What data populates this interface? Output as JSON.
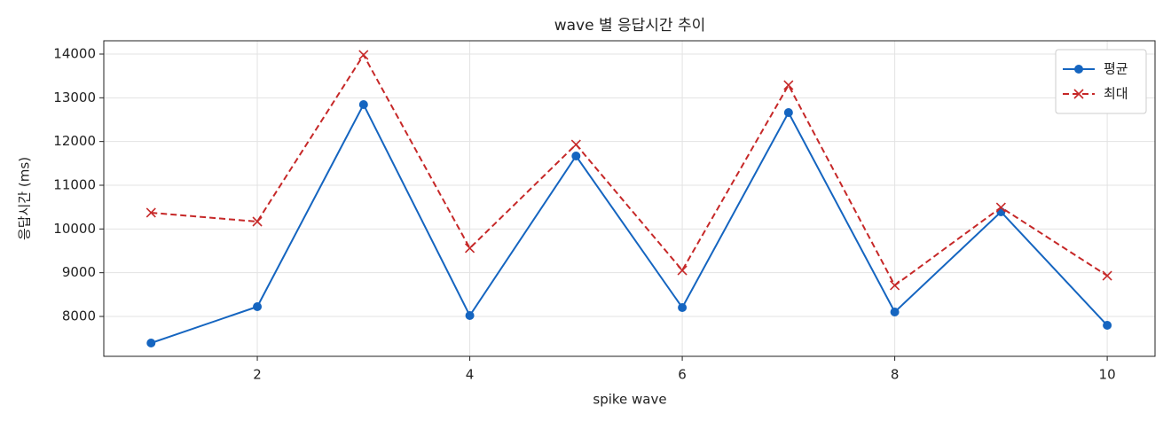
{
  "chart_data": {
    "type": "line",
    "title": "wave 별 응답시간 추이",
    "xlabel": "spike wave",
    "ylabel": "응답시간 (ms)",
    "x": [
      1,
      2,
      3,
      4,
      5,
      6,
      7,
      8,
      9,
      10
    ],
    "series": [
      {
        "name": "평균",
        "color": "#1565c0",
        "marker": "circle",
        "linestyle": "solid",
        "values": [
          7392,
          8223,
          12845,
          8020,
          11669,
          8203,
          12662,
          8101,
          10392,
          7797
        ]
      },
      {
        "name": "최대",
        "color": "#c62828",
        "marker": "x",
        "linestyle": "dashed",
        "values": [
          10372,
          10169,
          13980,
          9561,
          11932,
          9054,
          13290,
          8710,
          10493,
          8932
        ]
      }
    ],
    "xlim": [
      0.555,
      10.45
    ],
    "xticks": [
      2,
      4,
      6,
      8,
      10
    ],
    "ylim": [
      7088,
      14304
    ],
    "yticks": [
      8000,
      9000,
      10000,
      11000,
      12000,
      13000,
      14000
    ],
    "grid": true,
    "legend": "upper right"
  }
}
